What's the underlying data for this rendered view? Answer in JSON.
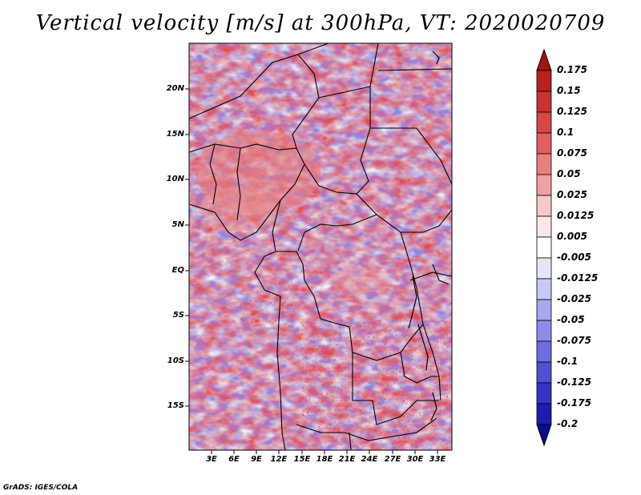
{
  "title": "Vertical velocity [m/s] at 300hPa, VT: 2020020709",
  "lat_ticks": [
    "20N",
    "15N",
    "10N",
    "5N",
    "EQ",
    "5S",
    "10S",
    "15S"
  ],
  "lon_ticks": [
    "3E",
    "6E",
    "9E",
    "12E",
    "15E",
    "18E",
    "21E",
    "24E",
    "27E",
    "30E",
    "33E"
  ],
  "colorbar": {
    "labels": [
      "0.175",
      "0.15",
      "0.125",
      "0.1",
      "0.075",
      "0.05",
      "0.025",
      "0.0125",
      "0.005",
      "-0.005",
      "-0.0125",
      "-0.025",
      "-0.05",
      "-0.075",
      "-0.1",
      "-0.125",
      "-0.175",
      "-0.2"
    ],
    "colors": [
      "#a01414",
      "#b82222",
      "#c83232",
      "#d84646",
      "#e06060",
      "#e88080",
      "#f0a0a0",
      "#f8c8c8",
      "#fce6e6",
      "#ffffff",
      "#e4e4fc",
      "#c8c8f8",
      "#a8a8f0",
      "#8c8ce8",
      "#6e6ee0",
      "#5050d4",
      "#3434c4",
      "#1c1cb0",
      "#0c0c90"
    ]
  },
  "credit": "GrADS: IGES/COLA"
}
